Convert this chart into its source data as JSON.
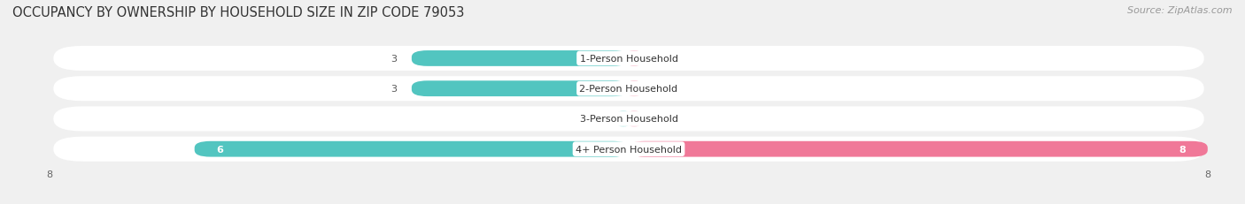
{
  "title": "OCCUPANCY BY OWNERSHIP BY HOUSEHOLD SIZE IN ZIP CODE 79053",
  "source": "Source: ZipAtlas.com",
  "categories": [
    "1-Person Household",
    "2-Person Household",
    "3-Person Household",
    "4+ Person Household"
  ],
  "owner_values": [
    3,
    3,
    0,
    6
  ],
  "renter_values": [
    0,
    0,
    0,
    8
  ],
  "owner_color": "#52C5C0",
  "renter_color": "#F07898",
  "axis_max": 8,
  "axis_min": -8,
  "bg_color": "#f0f0f0",
  "row_bg_color": "#e2e2e2",
  "title_fontsize": 10.5,
  "source_fontsize": 8,
  "label_fontsize": 8,
  "value_fontsize": 8,
  "tick_fontsize": 8,
  "legend_fontsize": 8.5
}
